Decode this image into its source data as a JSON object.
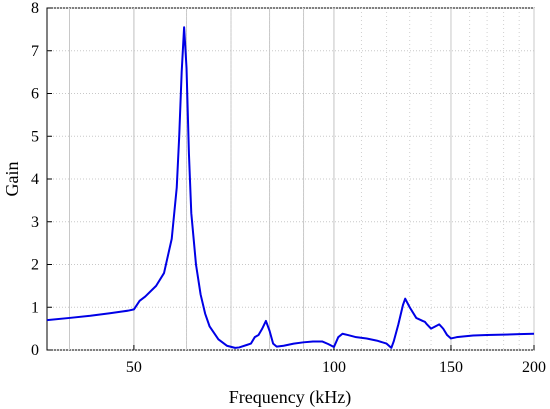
{
  "chart_data": {
    "type": "line",
    "xlabel": "Frequency (kHz)",
    "ylabel": "Gain",
    "x_scale": "log",
    "xlim": [
      37,
      200
    ],
    "ylim": [
      0,
      8
    ],
    "x_ticks": [
      50,
      100,
      150,
      200
    ],
    "y_ticks": [
      0,
      1,
      2,
      3,
      4,
      5,
      6,
      7,
      8
    ],
    "grid": true,
    "line_color": "#0000e6",
    "series": [
      {
        "x": [
          37,
          40,
          43,
          46,
          48,
          49,
          50,
          51,
          52,
          54,
          55.5,
          57,
          58,
          58.5,
          59,
          59.5,
          60,
          60.5,
          61,
          62,
          63,
          64,
          65,
          67,
          69,
          71,
          72,
          74,
          75,
          76,
          77,
          78,
          79,
          80,
          81,
          82,
          84,
          87,
          90,
          93,
          96,
          98,
          100,
          101.5,
          103,
          105,
          108,
          112,
          116,
          120,
          122,
          123,
          125,
          127,
          128,
          130,
          133,
          136,
          137,
          138,
          140,
          142,
          144,
          146,
          148,
          150,
          153,
          157,
          162,
          170,
          180,
          190,
          200
        ],
        "y": [
          0.7,
          0.75,
          0.8,
          0.86,
          0.9,
          0.92,
          0.95,
          1.15,
          1.25,
          1.5,
          1.8,
          2.6,
          3.8,
          5.0,
          6.5,
          7.55,
          6.6,
          4.6,
          3.2,
          2.0,
          1.3,
          0.85,
          0.55,
          0.25,
          0.1,
          0.05,
          0.06,
          0.12,
          0.15,
          0.3,
          0.35,
          0.5,
          0.68,
          0.45,
          0.15,
          0.08,
          0.1,
          0.15,
          0.18,
          0.2,
          0.2,
          0.14,
          0.07,
          0.3,
          0.38,
          0.35,
          0.3,
          0.27,
          0.22,
          0.15,
          0.05,
          0.2,
          0.6,
          1.05,
          1.2,
          1.0,
          0.75,
          0.68,
          0.66,
          0.6,
          0.5,
          0.55,
          0.6,
          0.5,
          0.35,
          0.27,
          0.3,
          0.32,
          0.34,
          0.35,
          0.36,
          0.37,
          0.38
        ]
      }
    ]
  }
}
